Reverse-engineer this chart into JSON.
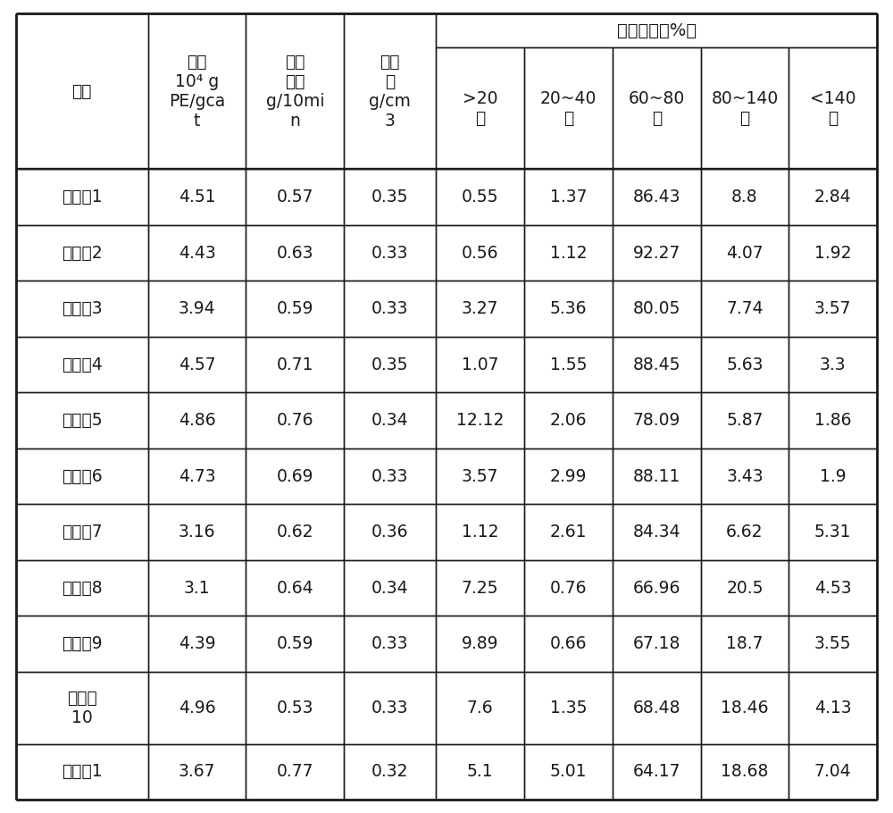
{
  "super_header": "粒度分布（%）",
  "col0_header": "编号",
  "col1_header": "活性\n10⁴ g\nPE/gca\nt",
  "col2_header": "熔融\n指数\ng/10mi\nn",
  "col3_header": "堆密\n度\ng/cm\n3",
  "col4_header": ">20\n目",
  "col5_header": "20~40\n目",
  "col6_header": "60~80\n目",
  "col7_header": "80~140\n目",
  "col8_header": "<140\n目",
  "rows": [
    [
      "实施例1",
      "4.51",
      "0.57",
      "0.35",
      "0.55",
      "1.37",
      "86.43",
      "8.8",
      "2.84"
    ],
    [
      "实施例2",
      "4.43",
      "0.63",
      "0.33",
      "0.56",
      "1.12",
      "92.27",
      "4.07",
      "1.92"
    ],
    [
      "实施例3",
      "3.94",
      "0.59",
      "0.33",
      "3.27",
      "5.36",
      "80.05",
      "7.74",
      "3.57"
    ],
    [
      "实施例4",
      "4.57",
      "0.71",
      "0.35",
      "1.07",
      "1.55",
      "88.45",
      "5.63",
      "3.3"
    ],
    [
      "实施例5",
      "4.86",
      "0.76",
      "0.34",
      "12.12",
      "2.06",
      "78.09",
      "5.87",
      "1.86"
    ],
    [
      "实施例6",
      "4.73",
      "0.69",
      "0.33",
      "3.57",
      "2.99",
      "88.11",
      "3.43",
      "1.9"
    ],
    [
      "实施例7",
      "3.16",
      "0.62",
      "0.36",
      "1.12",
      "2.61",
      "84.34",
      "6.62",
      "5.31"
    ],
    [
      "实施例8",
      "3.1",
      "0.64",
      "0.34",
      "7.25",
      "0.76",
      "66.96",
      "20.5",
      "4.53"
    ],
    [
      "实施例9",
      "4.39",
      "0.59",
      "0.33",
      "9.89",
      "0.66",
      "67.18",
      "18.7",
      "3.55"
    ],
    [
      "实施例\n10",
      "4.96",
      "0.53",
      "0.33",
      "7.6",
      "1.35",
      "68.48",
      "18.46",
      "4.13"
    ],
    [
      "对比例1",
      "3.67",
      "0.77",
      "0.32",
      "5.1",
      "5.01",
      "64.17",
      "18.68",
      "7.04"
    ]
  ],
  "bg_color": "#ffffff",
  "line_color": "#1a1a1a",
  "text_color": "#1a1a1a",
  "font_size": 13.5,
  "header_font_size": 13.5
}
